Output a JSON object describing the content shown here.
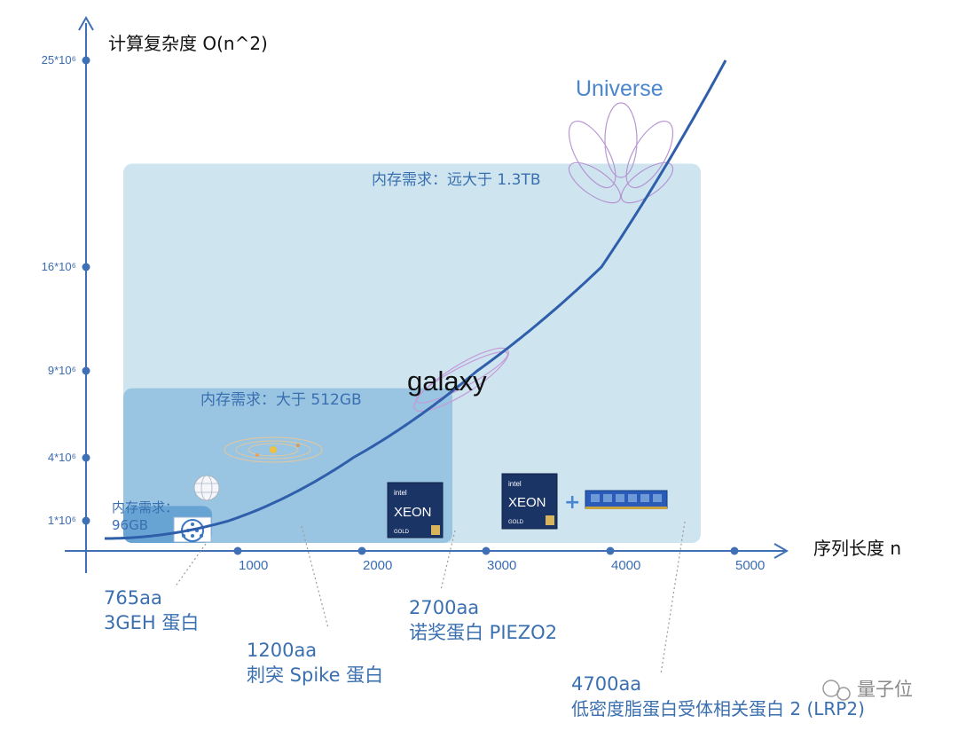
{
  "chart_data": {
    "type": "line",
    "title": "",
    "xlabel": "序列长度 n",
    "ylabel": "计算复杂度 O(n^2)",
    "x_ticks": [
      1000,
      2000,
      3000,
      4000,
      5000
    ],
    "y_ticks": [
      {
        "label": "1*10⁶",
        "value": 1000000
      },
      {
        "label": "4*10⁶",
        "value": 4000000
      },
      {
        "label": "9*10⁶",
        "value": 9000000
      },
      {
        "label": "16*10⁶",
        "value": 16000000
      },
      {
        "label": "25*10⁶",
        "value": 25000000
      }
    ],
    "series": [
      {
        "x": [
          0,
          500,
          765,
          1000,
          1500,
          2000,
          2500,
          3000,
          3500,
          4000,
          4500,
          5000
        ],
        "y": [
          0,
          250000,
          585225,
          1000000,
          2250000,
          4000000,
          6250000,
          9000000,
          12250000,
          16000000,
          20250000,
          25000000
        ]
      }
    ],
    "grid": false
  },
  "memory_regions": [
    {
      "label": "内存需求：远大于 1.3TB",
      "x_range": [
        150,
        4700
      ],
      "y_range": [
        0,
        20500000
      ],
      "color": "#cbe4ef"
    },
    {
      "label": "内存需求：大于 512GB",
      "x_range": [
        150,
        2700
      ],
      "y_range": [
        0,
        8000000
      ],
      "color": "#8fc0df"
    },
    {
      "label_line1": "内存需求：",
      "label_line2": "96GB",
      "x_range": [
        150,
        765
      ],
      "y_range": [
        0,
        1700000
      ],
      "color": "#5f9dd0"
    }
  ],
  "scale_labels": {
    "universe": "Universe",
    "galaxy": "galaxy"
  },
  "chips": {
    "brand": "intel",
    "product": "XEON",
    "tier": "GOLD",
    "plus": "+"
  },
  "proteins": [
    {
      "n": 765,
      "line1": "765aa",
      "line2": "3GEH 蛋白"
    },
    {
      "n": 1200,
      "line1": "1200aa",
      "line2": "刺突 Spike 蛋白"
    },
    {
      "n": 2700,
      "line1": "2700aa",
      "line2": "诺奖蛋白 PIEZO2"
    },
    {
      "n": 4700,
      "line1": "4700aa",
      "line2": "低密度脂蛋白受体相关蛋白 2 (LRP2)"
    }
  ],
  "watermark": "量子位",
  "colors": {
    "axis": "#3f6fb5",
    "curve": "#2f5fab",
    "text": "#3a6fb0"
  }
}
